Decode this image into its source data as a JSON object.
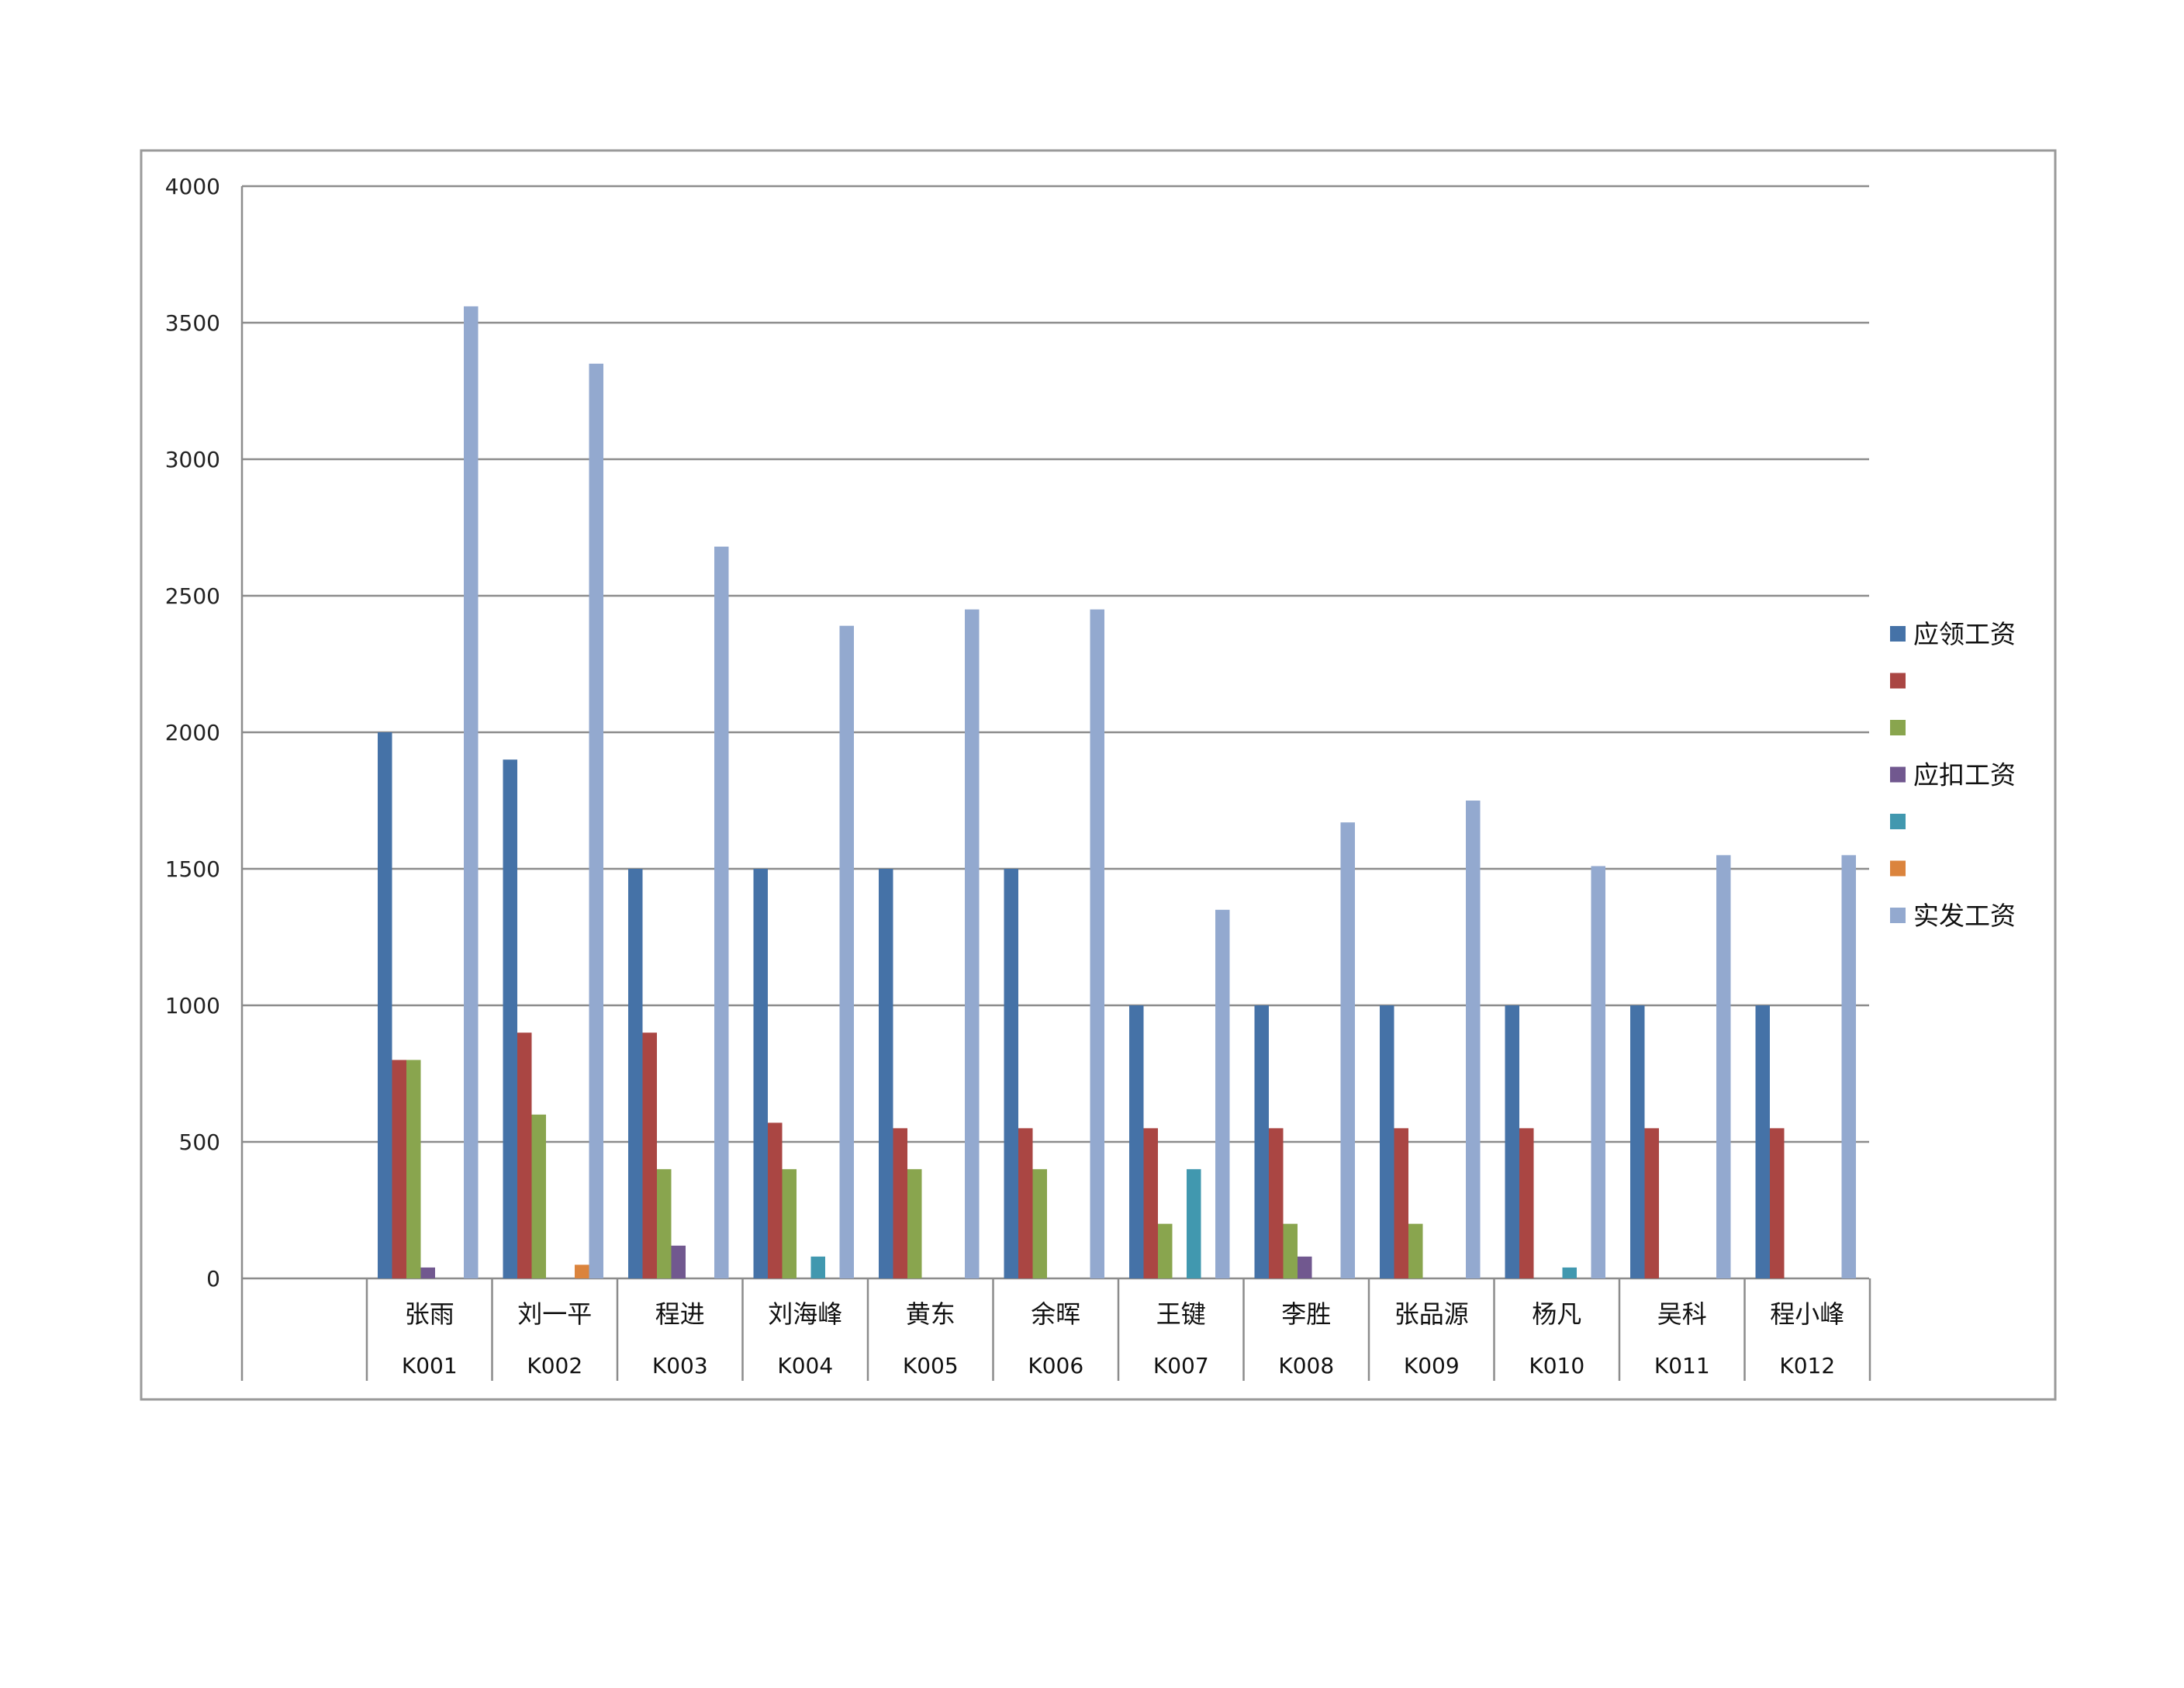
{
  "chart_data": {
    "type": "bar",
    "title": "",
    "xlabel": "",
    "ylabel": "",
    "ylim": [
      0,
      4000
    ],
    "y_ticks": [
      0,
      500,
      1000,
      1500,
      2000,
      2500,
      3000,
      3500,
      4000
    ],
    "grid": true,
    "legend_position": "right",
    "categories": [
      "张雨",
      "刘一平",
      "程进",
      "刘海峰",
      "黄东",
      "余晖",
      "王键",
      "李胜",
      "张品源",
      "杨凡",
      "吴科",
      "程小峰"
    ],
    "category_codes": [
      "K001",
      "K002",
      "K003",
      "K004",
      "K005",
      "K006",
      "K007",
      "K008",
      "K009",
      "K010",
      "K011",
      "K012"
    ],
    "series": [
      {
        "name": "应领工资",
        "color": "#4572A7",
        "values": [
          2000,
          1900,
          1500,
          1500,
          1500,
          1500,
          1000,
          1000,
          1000,
          1000,
          1000,
          1000
        ]
      },
      {
        "name": "",
        "color": "#AA4643",
        "values": [
          800,
          900,
          900,
          570,
          550,
          550,
          550,
          550,
          550,
          550,
          550,
          550
        ]
      },
      {
        "name": "",
        "color": "#89A54E",
        "values": [
          800,
          600,
          400,
          400,
          400,
          400,
          200,
          200,
          200,
          0,
          0,
          0
        ]
      },
      {
        "name": "应扣工资",
        "color": "#71588F",
        "values": [
          40,
          0,
          120,
          0,
          0,
          0,
          0,
          80,
          0,
          0,
          0,
          0
        ]
      },
      {
        "name": "",
        "color": "#4198AF",
        "values": [
          0,
          0,
          0,
          80,
          0,
          0,
          400,
          0,
          0,
          40,
          0,
          0
        ]
      },
      {
        "name": "",
        "color": "#DB843D",
        "values": [
          0,
          50,
          0,
          0,
          0,
          0,
          0,
          0,
          0,
          0,
          0,
          0
        ]
      },
      {
        "name": "实发工资",
        "color": "#93A9CF",
        "values": [
          3560,
          3350,
          2680,
          2390,
          2450,
          2450,
          1350,
          1670,
          1750,
          1510,
          1550,
          1550
        ]
      }
    ]
  }
}
